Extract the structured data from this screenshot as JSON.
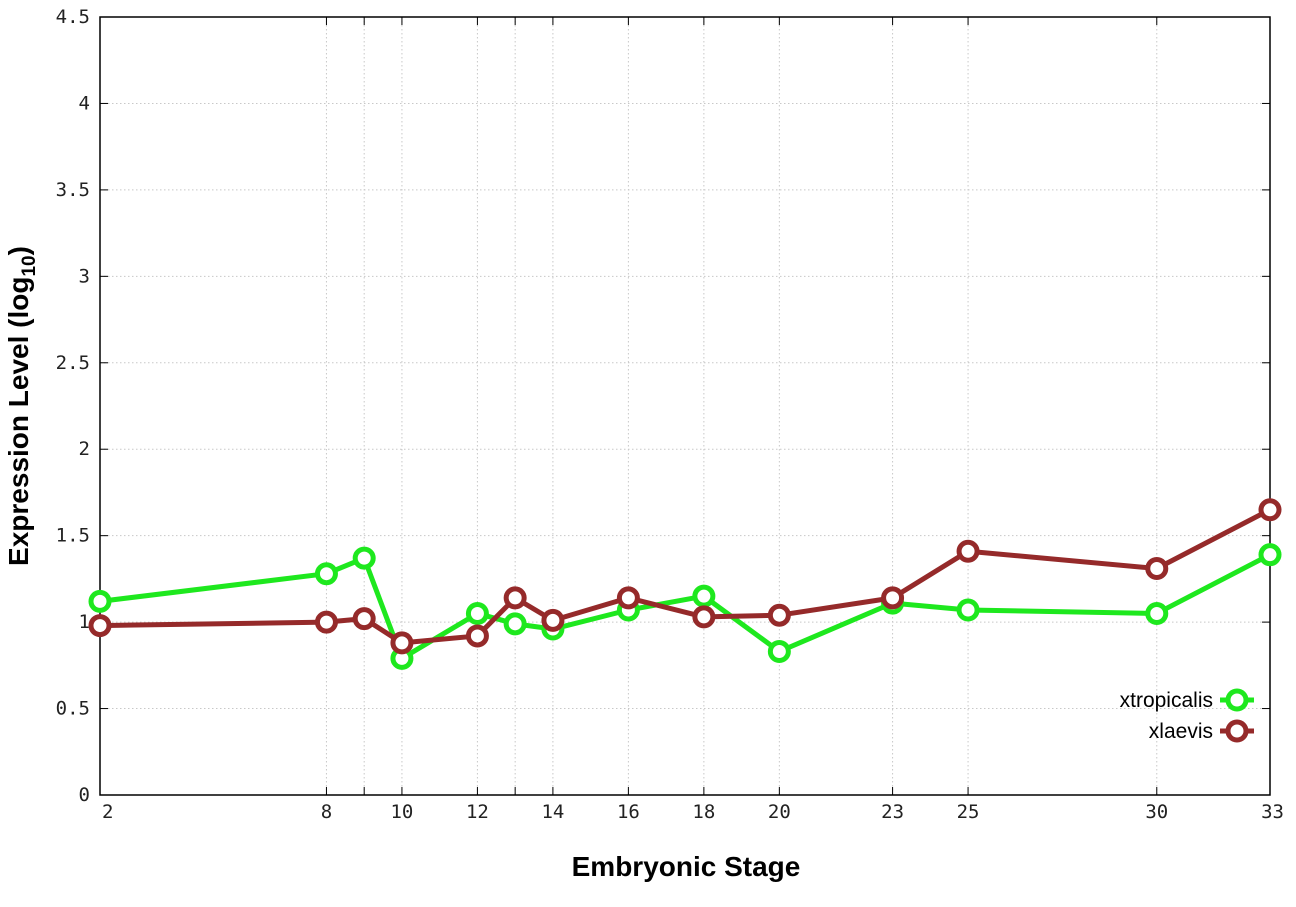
{
  "chart_data": {
    "type": "line",
    "xlabel": "Embryonic Stage",
    "ylabel_main": "Expression Level (log",
    "ylabel_sub": "10",
    "ylabel_close": ")",
    "x": [
      "2",
      "8",
      "9",
      "10",
      "12",
      "13",
      "14",
      "16",
      "18",
      "20",
      "23",
      "25",
      "30",
      "33"
    ],
    "x_tick_labels": [
      "2",
      "8",
      "10",
      "12",
      "14",
      "16",
      "18",
      "20",
      "23",
      "25",
      "30",
      "33"
    ],
    "y_ticks": [
      0,
      0.5,
      1,
      1.5,
      2,
      2.5,
      3,
      3.5,
      4,
      4.5
    ],
    "y_tick_labels": [
      "0",
      "0.5",
      "1",
      "1.5",
      "2",
      "2.5",
      "3",
      "3.5",
      "4",
      "4.5"
    ],
    "ylim": [
      0,
      4.5
    ],
    "grid": true,
    "legend_position": "bottom-right",
    "series": [
      {
        "name": "xtropicalis",
        "color": "#1ee81e",
        "values": [
          1.12,
          1.28,
          1.37,
          0.79,
          1.05,
          0.99,
          0.96,
          1.07,
          1.15,
          0.83,
          1.11,
          1.07,
          1.05,
          1.39
        ]
      },
      {
        "name": "xlaevis",
        "color": "#952a2a",
        "values": [
          0.98,
          1.0,
          1.02,
          0.88,
          0.92,
          1.14,
          1.01,
          1.14,
          1.03,
          1.04,
          1.14,
          1.41,
          1.31,
          1.65
        ]
      }
    ]
  }
}
